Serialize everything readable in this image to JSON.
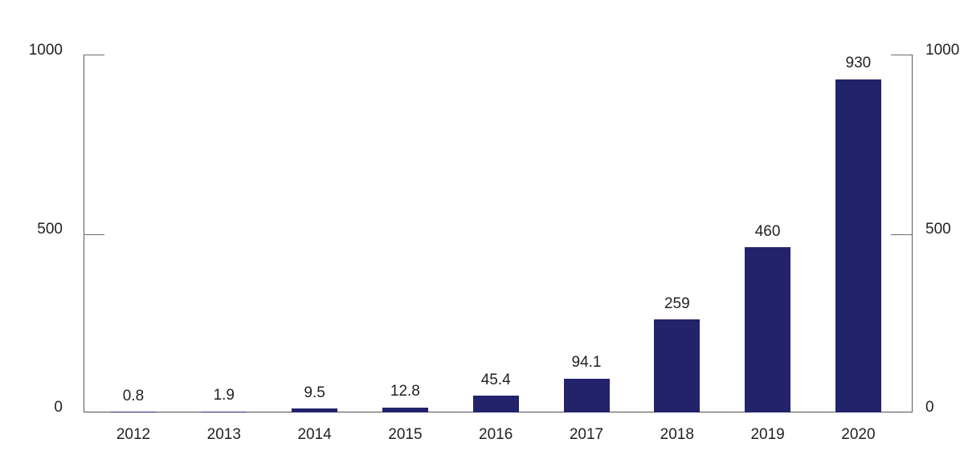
{
  "chart_data": {
    "type": "bar",
    "title": "",
    "xlabel": "",
    "ylabel": "",
    "categories": [
      "2012",
      "2013",
      "2014",
      "2015",
      "2016",
      "2017",
      "2018",
      "2019",
      "2020"
    ],
    "values": [
      0.8,
      1.9,
      9.5,
      12.8,
      45.4,
      94.1,
      259,
      460,
      930
    ],
    "value_labels": [
      "0.8",
      "1.9",
      "9.5",
      "12.8",
      "45.4",
      "94.1",
      "259",
      "460",
      "930"
    ],
    "ylim": [
      0,
      1000
    ],
    "yticks": [
      "0",
      "500",
      "1000"
    ],
    "dual_y_axis": true,
    "grid": false,
    "legend": null,
    "bar_color": "#22236b",
    "axis_color": "#58595b",
    "text_color": "#231f20",
    "background_color": "#ffffff"
  }
}
